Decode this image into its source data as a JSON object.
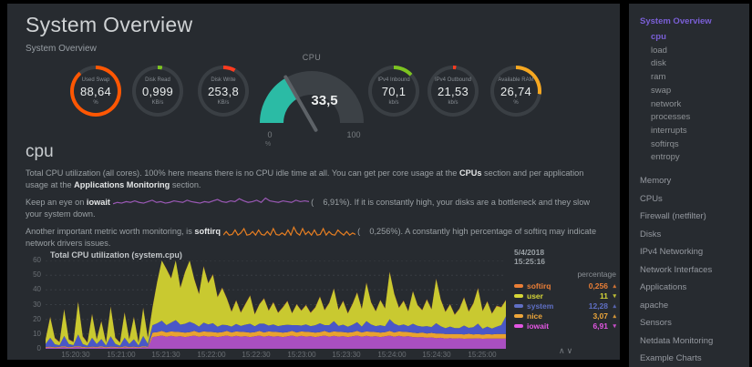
{
  "window": {
    "title": "System Overview",
    "subtitle": "System Overview"
  },
  "icons": {
    "chevron_up": "∧",
    "chevron_down": "∨"
  },
  "sidebar": {
    "active_color": "#7a5fd6",
    "items": [
      {
        "label": "System Overview",
        "level": 0,
        "active": true
      },
      {
        "label": "cpu",
        "level": 1,
        "active": true
      },
      {
        "label": "load",
        "level": 1
      },
      {
        "label": "disk",
        "level": 1
      },
      {
        "label": "ram",
        "level": 1
      },
      {
        "label": "swap",
        "level": 1
      },
      {
        "label": "network",
        "level": 1
      },
      {
        "label": "processes",
        "level": 1
      },
      {
        "label": "interrupts",
        "level": 1
      },
      {
        "label": "softirqs",
        "level": 1
      },
      {
        "label": "entropy",
        "level": 1
      },
      {
        "label": "Memory",
        "level": 0
      },
      {
        "label": "CPUs",
        "level": 0
      },
      {
        "label": "Firewall (netfilter)",
        "level": 0
      },
      {
        "label": "Disks",
        "level": 0
      },
      {
        "label": "IPv4 Networking",
        "level": 0
      },
      {
        "label": "Network Interfaces",
        "level": 0
      },
      {
        "label": "Applications",
        "level": 0
      },
      {
        "label": "apache",
        "level": 0
      },
      {
        "label": "Sensors",
        "level": 0
      },
      {
        "label": "Netdata Monitoring",
        "level": 0
      },
      {
        "label": "Example Charts",
        "level": 0
      }
    ]
  },
  "gauges": {
    "easypie": [
      {
        "label": "Used Swap",
        "value": "88,64",
        "unit": "%",
        "color": "#ff5703",
        "pct": 88.6
      },
      {
        "label": "Disk Read",
        "value": "0,999",
        "unit": "KB/s",
        "color": "#7dc421",
        "pct": 3
      },
      {
        "label": "Disk Write",
        "value": "253,8",
        "unit": "KB/s",
        "color": "#ff3b1f",
        "pct": 8
      },
      {
        "label": "IPv4 Inbound",
        "value": "70,1",
        "unit": "kb/s",
        "color": "#7dc421",
        "pct": 13
      },
      {
        "label": "IPv4 Outbound",
        "value": "21,53",
        "unit": "kb/s",
        "color": "#ff3b1f",
        "pct": 2
      },
      {
        "label": "Available RAM",
        "value": "26,74",
        "unit": "%",
        "color": "#f6a821",
        "pct": 27
      }
    ],
    "cpu_gauge": {
      "title": "CPU",
      "value": "33,5",
      "min": "0",
      "max": "100",
      "unit": "%",
      "pct": 33.5,
      "color": "#2bbba5"
    }
  },
  "section": {
    "heading": "cpu",
    "para1_pre": "Total CPU utilization (all cores). 100% here means there is no CPU idle time at all. You can get per core usage at the ",
    "para1_b1": "CPUs",
    "para1_mid": " section and per application usage at the ",
    "para1_b2": "Applications Monitoring",
    "para1_post": " section.",
    "para2_pre": "Keep an eye on ",
    "para2_b": "iowait",
    "para2_post": " (    6,91%). If it is constantly high, your disks are a bottleneck and they slow your system down.",
    "para3_pre": "Another important metric worth monitoring, is ",
    "para3_b": "softirq",
    "para3_post": " (    0,256%). A constantly high percentage of softirq may indicate network drivers issues."
  },
  "chart_data": {
    "type": "area",
    "title": "Total CPU utilization (system.cpu)",
    "date": "5/4/2018",
    "time": "15:25:16",
    "units_label": "percentage",
    "ylabel": "percentage",
    "ylim": [
      0,
      60
    ],
    "yticks": [
      0,
      10,
      20,
      30,
      40,
      50,
      60
    ],
    "xticks": [
      "15:20:30",
      "15:21:00",
      "15:21:30",
      "15:22:00",
      "15:22:30",
      "15:23:00",
      "15:23:30",
      "15:24:00",
      "15:24:30",
      "15:25:00"
    ],
    "x_span_seconds": 306,
    "x_first_tick_offset_seconds": 20,
    "x_tick_interval_seconds": 30,
    "grid": true,
    "legend_position": "right",
    "stack_order": [
      "iowait",
      "nice",
      "system",
      "user",
      "softirq"
    ],
    "legend": [
      {
        "name": "softirq",
        "value": "0,256",
        "trend": "up",
        "color": "#ea7e36"
      },
      {
        "name": "user",
        "value": "11",
        "trend": "down",
        "color": "#d6d637"
      },
      {
        "name": "system",
        "value": "12,28",
        "trend": "up",
        "color": "#5f6fc4"
      },
      {
        "name": "nice",
        "value": "3,07",
        "trend": "up",
        "color": "#eda63a"
      },
      {
        "name": "iowait",
        "value": "6,91",
        "trend": "down",
        "color": "#e256e2"
      }
    ],
    "series": [
      {
        "name": "iowait",
        "color": "#a94fc0",
        "values": [
          0.8,
          1,
          0.6,
          0.9,
          1.2,
          0.7,
          1,
          1.3,
          0.8,
          0.6,
          1,
          0.8,
          1.1,
          0.7,
          1,
          0.9,
          0.6,
          1.1,
          0.8,
          1,
          0.7,
          1.2,
          0.9,
          8,
          8.5,
          9,
          8.2,
          8.8,
          8.3,
          8.6,
          8,
          8.5,
          9,
          8.2,
          8.8,
          8.3,
          8.6,
          8,
          8.5,
          9,
          8.2,
          8.8,
          8.3,
          8.6,
          8,
          8.5,
          9,
          8.2,
          8.8,
          8.3,
          8.6,
          8,
          8.5,
          9,
          8.2,
          8.8,
          8.3,
          8.6,
          8,
          8.5,
          9,
          8.2,
          8.8,
          8.3,
          8.6,
          8,
          8.5,
          9,
          8.2,
          8.8,
          8.3,
          8.6,
          8,
          8.5,
          9,
          8.2,
          8.8,
          8.3,
          8.6,
          8,
          7.8,
          8,
          7.5,
          7.8,
          7.2,
          7.5,
          7,
          7.3,
          7,
          7.2,
          6.8,
          7,
          6.9,
          7.1,
          6.8,
          7,
          6.9,
          7,
          6.9,
          6.9
        ]
      },
      {
        "name": "nice",
        "color": "#e9a22f",
        "values": [
          0.5,
          0.5,
          0.5,
          0.5,
          0.5,
          0.5,
          0.5,
          0.5,
          0.5,
          0.5,
          0.5,
          0.5,
          0.5,
          0.5,
          0.5,
          0.5,
          0.5,
          0.5,
          0.5,
          0.5,
          0.5,
          0.5,
          0.5,
          3,
          2.8,
          3.1,
          2.9,
          3,
          3.2,
          2.8,
          3,
          2.8,
          3.1,
          2.9,
          3,
          3.2,
          2.8,
          3,
          2.8,
          3.1,
          2.9,
          3,
          3.2,
          2.8,
          3,
          2.8,
          3.1,
          2.9,
          3,
          3.2,
          2.8,
          3,
          2.8,
          3.1,
          2.9,
          3,
          3.2,
          2.8,
          3,
          2.8,
          3.1,
          2.9,
          3,
          3.2,
          2.8,
          3,
          2.8,
          3.1,
          2.9,
          3,
          3.2,
          2.8,
          3,
          2.8,
          3.1,
          2.9,
          3,
          3.2,
          2.8,
          3,
          2.8,
          3.1,
          2.9,
          3,
          3.2,
          2.8,
          3,
          2.8,
          3.1,
          2.9,
          3,
          3.2,
          2.8,
          3,
          2.8,
          3.1,
          2.9,
          3,
          3.2,
          3.1
        ]
      },
      {
        "name": "system",
        "color": "#4a57c8",
        "values": [
          2,
          6,
          2,
          1,
          7,
          2,
          1,
          8,
          2,
          1,
          6,
          2,
          5,
          1,
          7,
          2,
          1,
          6,
          2,
          5,
          1,
          7,
          2,
          5,
          6,
          7,
          5,
          6,
          8,
          5,
          6,
          7,
          5,
          4,
          6,
          5,
          6,
          4,
          5,
          4,
          4,
          5,
          4,
          5,
          6,
          4,
          5,
          6,
          4,
          5,
          4,
          5,
          5,
          4,
          5,
          4,
          5,
          4,
          5,
          6,
          4,
          5,
          7,
          4,
          5,
          4,
          5,
          6,
          4,
          7,
          5,
          4,
          5,
          4,
          8,
          6,
          4,
          5,
          4,
          6,
          5,
          4,
          5,
          4,
          7,
          5,
          4,
          5,
          4,
          4,
          6,
          4,
          5,
          7,
          4,
          5,
          4,
          5,
          6,
          12
        ]
      },
      {
        "name": "user",
        "color": "#c9c930",
        "values": [
          3,
          14,
          4,
          2,
          18,
          3,
          2,
          22,
          5,
          2,
          16,
          3,
          12,
          2,
          20,
          4,
          2,
          17,
          3,
          15,
          2,
          19,
          4,
          12,
          28,
          45,
          38,
          30,
          42,
          25,
          35,
          48,
          30,
          22,
          38,
          28,
          33,
          20,
          25,
          18,
          10,
          16,
          9,
          14,
          19,
          8,
          13,
          17,
          10,
          15,
          9,
          12,
          16,
          8,
          14,
          10,
          13,
          9,
          12,
          18,
          10,
          15,
          22,
          11,
          16,
          9,
          14,
          20,
          12,
          26,
          15,
          10,
          17,
          12,
          32,
          20,
          12,
          16,
          10,
          22,
          14,
          11,
          18,
          12,
          30,
          18,
          11,
          15,
          9,
          13,
          19,
          11,
          16,
          24,
          12,
          17,
          10,
          14,
          12,
          11
        ]
      },
      {
        "name": "softirq",
        "color": "#e0662c",
        "constant": 0.3
      }
    ],
    "sparklines": {
      "iowait": {
        "color": "#9b59b6",
        "values": [
          2,
          3,
          2.5,
          3.5,
          3,
          4,
          3,
          2.5,
          3.5,
          4.5,
          3,
          3.5,
          2.5,
          3,
          4,
          3.5,
          3,
          4.5,
          3.5,
          3,
          2.5,
          3.5,
          3,
          4,
          5,
          3.5,
          3,
          4,
          3.5,
          5.5,
          4,
          3,
          3.5,
          4.5,
          3,
          6,
          4,
          3.5,
          3,
          4,
          3.5,
          3,
          4.5,
          3.5,
          4,
          3.5
        ]
      },
      "softirq": {
        "color": "#e67e22",
        "values": [
          0.5,
          3,
          0.5,
          1,
          4,
          0.5,
          2,
          5,
          0.5,
          1,
          3,
          0.5,
          4,
          1,
          0.5,
          3,
          0.5,
          5,
          1,
          0.5,
          2,
          0.5,
          4,
          0.5,
          6,
          2,
          0.5,
          5,
          1,
          3,
          0.5,
          4,
          0.5,
          1,
          5,
          0.5,
          3,
          1,
          0.5,
          4,
          2,
          0.5,
          3,
          0.5,
          2,
          1
        ]
      }
    }
  }
}
